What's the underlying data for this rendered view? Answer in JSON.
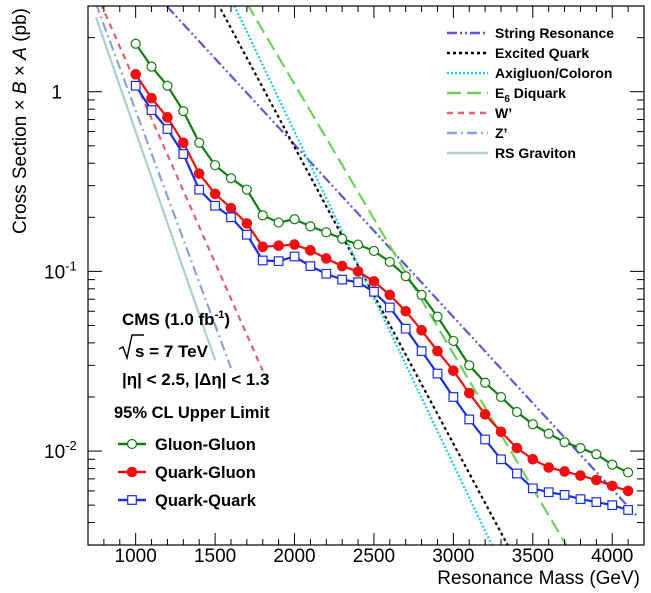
{
  "chart_data": {
    "type": "line",
    "title": "",
    "xlabel": "Resonance Mass (GeV)",
    "ylabel_prefix": "Cross Section × ",
    "ylabel_B": "B",
    "ylabel_mid": " × ",
    "ylabel_A": "A",
    "ylabel_suffix": " (pb)",
    "x_scale": "linear",
    "y_scale": "log",
    "xlim": [
      700,
      4200
    ],
    "ylim": [
      0.003,
      3.0
    ],
    "x_ticks": [
      {
        "value": 1000,
        "label": "1000"
      },
      {
        "value": 1500,
        "label": "1500"
      },
      {
        "value": 2000,
        "label": "2000"
      },
      {
        "value": 2500,
        "label": "2500"
      },
      {
        "value": 3000,
        "label": "3000"
      },
      {
        "value": 3500,
        "label": "3500"
      },
      {
        "value": 4000,
        "label": "4000"
      }
    ],
    "y_ticks": [
      {
        "value": 1,
        "base": "1",
        "exp": ""
      },
      {
        "value": 0.1,
        "base": "10",
        "exp": "-1"
      },
      {
        "value": 0.01,
        "base": "10",
        "exp": "-2"
      }
    ],
    "grid": false,
    "annotations": {
      "experiment": "CMS (1.0 fb",
      "experiment_sup": "-1",
      "experiment_close": ")",
      "energy": "s = 7 TeV",
      "eta_cut": "|η| < 2.5, |Δη| < 1.3",
      "limit_label": "95% CL Upper Limit"
    },
    "legend_position": "top-right",
    "theory_legend": [
      {
        "label": "String Resonance",
        "color": "#5a5ad6",
        "dash": "10 3 2 3 2 3"
      },
      {
        "label": "Excited Quark",
        "color": "#000000",
        "dash": "3 3"
      },
      {
        "label": "Axigluon/Coloron",
        "color": "#1fc7e6",
        "dash": "2 2"
      },
      {
        "label": "E",
        "label_sub": "6",
        "label_after": " Diquark",
        "color": "#6fd15a",
        "dash": "14 6"
      },
      {
        "label": "W’",
        "color": "#e06070",
        "dash": "6 5"
      },
      {
        "label": "Z’",
        "color": "#8aa2d6",
        "dash": "10 4 2 4"
      },
      {
        "label": "RS Graviton",
        "color": "#a9cfcf",
        "dash": ""
      }
    ],
    "limit_legend": [
      {
        "label": "Gluon-Gluon",
        "color": "#137d13",
        "marker": "open-circle"
      },
      {
        "label": "Quark-Gluon",
        "color": "#ee1010",
        "marker": "filled-circle"
      },
      {
        "label": "Quark-Quark",
        "color": "#1a2ee8",
        "marker": "open-square"
      }
    ],
    "limit_series": [
      {
        "name": "Gluon-Gluon",
        "x": [
          1000,
          1100,
          1200,
          1300,
          1400,
          1500,
          1600,
          1700,
          1800,
          1900,
          2000,
          2100,
          2200,
          2300,
          2400,
          2500,
          2600,
          2700,
          2800,
          2900,
          3000,
          3100,
          3200,
          3300,
          3400,
          3500,
          3600,
          3700,
          3800,
          3900,
          4000,
          4100
        ],
        "y": [
          1.85,
          1.38,
          1.08,
          0.78,
          0.52,
          0.39,
          0.33,
          0.285,
          0.205,
          0.187,
          0.195,
          0.178,
          0.165,
          0.152,
          0.141,
          0.13,
          0.113,
          0.094,
          0.074,
          0.056,
          0.041,
          0.03,
          0.024,
          0.02,
          0.0165,
          0.0141,
          0.0125,
          0.0112,
          0.0104,
          0.0096,
          0.0084,
          0.0076
        ]
      },
      {
        "name": "Quark-Gluon",
        "x": [
          1000,
          1100,
          1200,
          1300,
          1400,
          1500,
          1600,
          1700,
          1800,
          1900,
          2000,
          2100,
          2200,
          2300,
          2400,
          2500,
          2600,
          2700,
          2800,
          2900,
          3000,
          3100,
          3200,
          3300,
          3400,
          3500,
          3600,
          3700,
          3800,
          3900,
          4000,
          4100
        ],
        "y": [
          1.25,
          0.92,
          0.72,
          0.52,
          0.35,
          0.27,
          0.225,
          0.185,
          0.137,
          0.139,
          0.141,
          0.131,
          0.118,
          0.107,
          0.1,
          0.088,
          0.074,
          0.06,
          0.047,
          0.036,
          0.028,
          0.021,
          0.016,
          0.0128,
          0.0104,
          0.009,
          0.0081,
          0.0077,
          0.0073,
          0.0069,
          0.0064,
          0.006
        ]
      },
      {
        "name": "Quark-Quark",
        "x": [
          1000,
          1100,
          1200,
          1300,
          1400,
          1500,
          1600,
          1700,
          1800,
          1900,
          2000,
          2100,
          2200,
          2300,
          2400,
          2500,
          2600,
          2700,
          2800,
          2900,
          3000,
          3100,
          3200,
          3300,
          3400,
          3500,
          3600,
          3700,
          3800,
          3900,
          4000,
          4100
        ],
        "y": [
          1.08,
          0.79,
          0.62,
          0.45,
          0.285,
          0.232,
          0.2,
          0.16,
          0.115,
          0.114,
          0.121,
          0.107,
          0.097,
          0.09,
          0.087,
          0.077,
          0.063,
          0.048,
          0.036,
          0.027,
          0.02,
          0.015,
          0.0116,
          0.009,
          0.0075,
          0.0062,
          0.0059,
          0.0057,
          0.0054,
          0.0052,
          0.005,
          0.0047
        ]
      }
    ],
    "theory_series": [
      {
        "name": "String Resonance",
        "x": [
          1100,
          4150
        ],
        "y": [
          3.7,
          0.0044
        ]
      },
      {
        "name": "Excited Quark",
        "x": [
          1500,
          3350
        ],
        "y": [
          3.3,
          0.0029
        ]
      },
      {
        "name": "Axigluon/Coloron",
        "x": [
          1600,
          3250
        ],
        "y": [
          3.3,
          0.0029
        ]
      },
      {
        "name": "E6 Diquark",
        "x": [
          1700,
          3720
        ],
        "y": [
          3.1,
          0.0029
        ]
      },
      {
        "name": "W’",
        "x": [
          780,
          1800
        ],
        "y": [
          3.1,
          0.028
        ]
      },
      {
        "name": "Z’",
        "x": [
          750,
          1600
        ],
        "y": [
          3.1,
          0.029
        ]
      },
      {
        "name": "RS Graviton",
        "x": [
          750,
          1500
        ],
        "y": [
          2.6,
          0.032
        ]
      }
    ]
  }
}
